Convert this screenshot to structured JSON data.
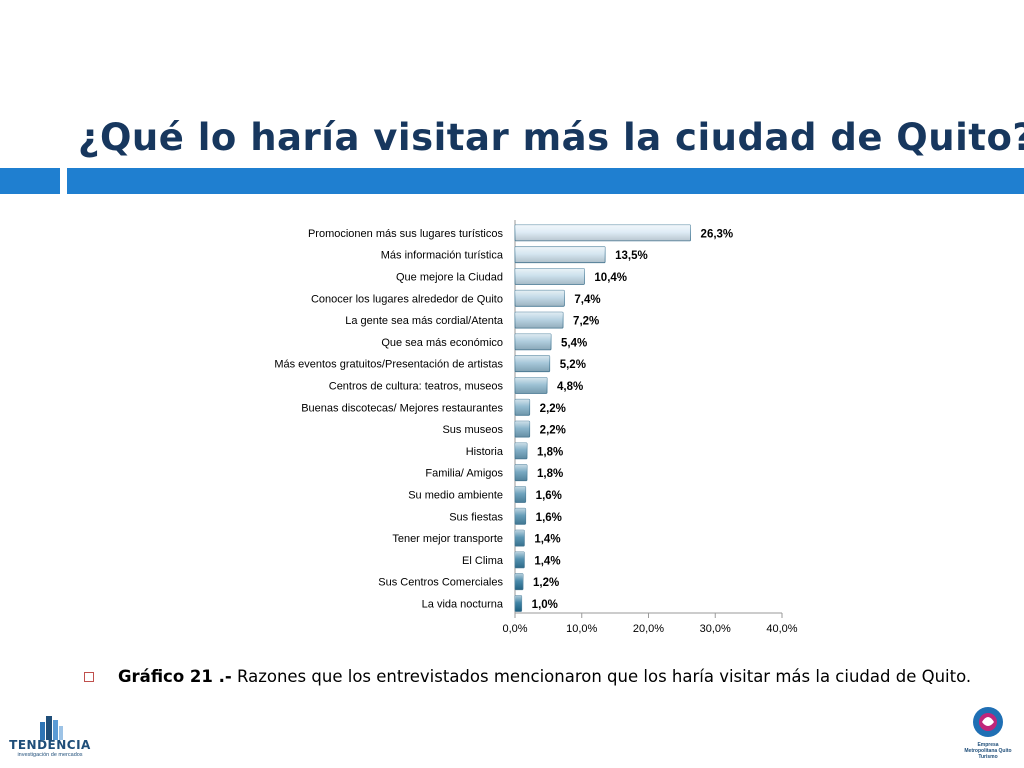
{
  "slide": {
    "title": "¿Qué lo haría visitar más la ciudad de Quito?"
  },
  "chart_data": {
    "type": "bar",
    "orientation": "horizontal",
    "categories": [
      "Promocionen más sus lugares turísticos",
      "Más información turística",
      "Que mejore la Ciudad",
      "Conocer los lugares alrededor de Quito",
      "La gente sea más cordial/Atenta",
      "Que sea más económico",
      "Más eventos gratuitos/Presentación  de artistas",
      "Centros de cultura: teatros, museos",
      "Buenas discotecas/ Mejores restaurantes",
      "Sus museos",
      "Historia",
      "Familia/ Amigos",
      "Su medio ambiente",
      "Sus fiestas",
      "Tener mejor transporte",
      "El Clima",
      "Sus Centros Comerciales",
      "La vida nocturna"
    ],
    "values": [
      26.3,
      13.5,
      10.4,
      7.4,
      7.2,
      5.4,
      5.2,
      4.8,
      2.2,
      2.2,
      1.8,
      1.8,
      1.6,
      1.6,
      1.4,
      1.4,
      1.2,
      1.0
    ],
    "data_labels": [
      "26,3%",
      "13,5%",
      "10,4%",
      "7,4%",
      "7,2%",
      "5,4%",
      "5,2%",
      "4,8%",
      "2,2%",
      "2,2%",
      "1,8%",
      "1,8%",
      "1,6%",
      "1,6%",
      "1,4%",
      "1,4%",
      "1,2%",
      "1,0%"
    ],
    "x_ticks": [
      "0,0%",
      "10,0%",
      "20,0%",
      "30,0%",
      "40,0%"
    ],
    "xlim": [
      0,
      40
    ],
    "grid": false,
    "legend": "none"
  },
  "caption": {
    "label": "Gráfico 21 .-",
    "text": "Razones que los entrevistados mencionaron que los haría visitar más la ciudad de Quito."
  },
  "logos": {
    "left_name": "TENDENCIA",
    "left_sub": "investigación de mercados",
    "right_text": "Empresa Metropolitana Quito Turismo"
  },
  "colors": {
    "title": "#17375e",
    "accent_bar": "#1f7fd0",
    "bar_light": "#d9e9f4",
    "bar_dark": "#1f6f96",
    "bullet": "#c0504d"
  }
}
